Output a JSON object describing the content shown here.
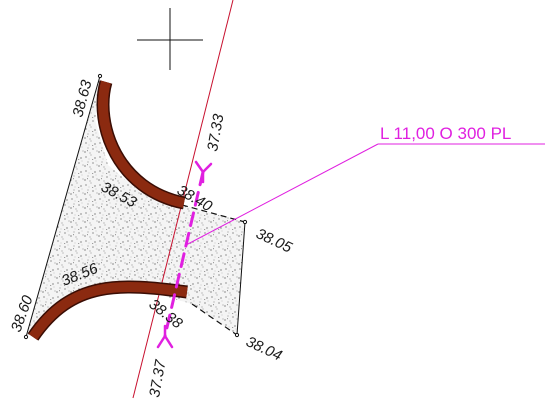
{
  "pipe": {
    "label": "L 11,00 O 300 PL",
    "color": "#e020e0"
  },
  "elevations": {
    "top_left_corner": "38.63",
    "curb_top_inner": "38.53",
    "center_right": "38.40",
    "center_left": "38.38",
    "right_top_corner": "38.05",
    "curb_bottom_inner": "38.56",
    "bottom_left_corner": "38.60",
    "right_bottom_corner": "38.04",
    "pipe_top_end": "37.33",
    "pipe_bottom_end": "37.37"
  },
  "colors": {
    "curb": "#8b2a10",
    "curb_outline": "#3a0d04",
    "axis_line": "#c8102e",
    "boundary": "#111111",
    "fill_dots": "#555555"
  }
}
